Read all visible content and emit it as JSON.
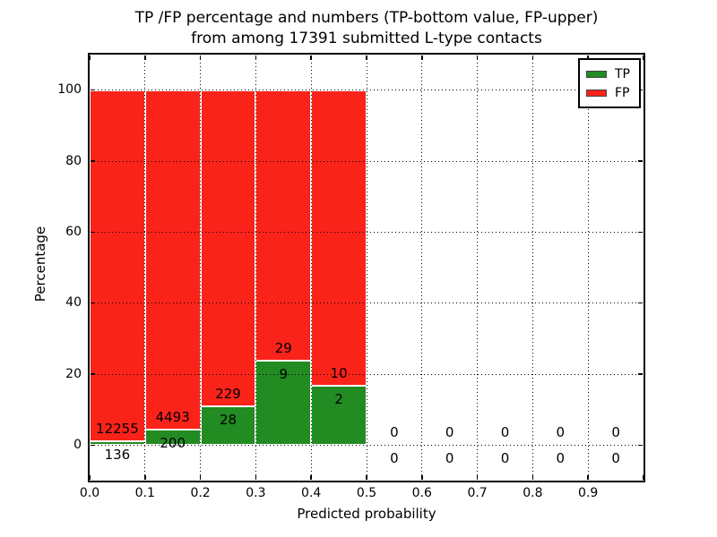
{
  "figure": {
    "title_line1": "TP /FP percentage and numbers (TP-bottom value, FP-upper)",
    "title_line2": "from among 17391 submitted L-type contacts"
  },
  "axes": {
    "xlabel": "Predicted probability",
    "ylabel": "Percentage",
    "x_tick_labels": [
      "0.0",
      "0.1",
      "0.2",
      "0.3",
      "0.4",
      "0.5",
      "0.6",
      "0.7",
      "0.8",
      "0.9"
    ],
    "y_tick_labels": [
      "0",
      "20",
      "40",
      "60",
      "80",
      "100"
    ]
  },
  "legend": {
    "position": "upper right",
    "items": [
      {
        "label": "TP",
        "color": "#228b22"
      },
      {
        "label": "FP",
        "color": "#fa231a"
      }
    ]
  },
  "chart_data": {
    "type": "bar",
    "variant": "stacked-100-percent-histogram",
    "title": "TP /FP percentage and numbers (TP-bottom value, FP-upper) from among 17391 submitted L-type contacts",
    "xlabel": "Predicted probability",
    "ylabel": "Percentage",
    "xlim": [
      0.0,
      1.0
    ],
    "ylim": [
      -10,
      110
    ],
    "xticks": [
      0.0,
      0.1,
      0.2,
      0.3,
      0.4,
      0.5,
      0.6,
      0.7,
      0.8,
      0.9
    ],
    "yticks": [
      0,
      20,
      40,
      60,
      80,
      100
    ],
    "grid": {
      "style": "dotted",
      "color": "#000000",
      "on_top": true
    },
    "bin_width": 0.1,
    "total_submitted_contacts": 17391,
    "series": [
      {
        "name": "TP",
        "color": "#228b22",
        "stack_position": "bottom"
      },
      {
        "name": "FP",
        "color": "#fa231a",
        "stack_position": "top"
      }
    ],
    "bins": [
      {
        "x_start": 0.0,
        "tp_count": 136,
        "fp_count": 12255,
        "tp_percent": 1.1,
        "fp_percent": 98.9
      },
      {
        "x_start": 0.1,
        "tp_count": 200,
        "fp_count": 4493,
        "tp_percent": 4.26,
        "fp_percent": 95.74
      },
      {
        "x_start": 0.2,
        "tp_count": 28,
        "fp_count": 229,
        "tp_percent": 10.89,
        "fp_percent": 89.11
      },
      {
        "x_start": 0.3,
        "tp_count": 9,
        "fp_count": 29,
        "tp_percent": 23.68,
        "fp_percent": 76.32
      },
      {
        "x_start": 0.4,
        "tp_count": 2,
        "fp_count": 10,
        "tp_percent": 16.67,
        "fp_percent": 83.33
      },
      {
        "x_start": 0.5,
        "tp_count": 0,
        "fp_count": 0,
        "tp_percent": 0,
        "fp_percent": 0
      },
      {
        "x_start": 0.6,
        "tp_count": 0,
        "fp_count": 0,
        "tp_percent": 0,
        "fp_percent": 0
      },
      {
        "x_start": 0.7,
        "tp_count": 0,
        "fp_count": 0,
        "tp_percent": 0,
        "fp_percent": 0
      },
      {
        "x_start": 0.8,
        "tp_count": 0,
        "fp_count": 0,
        "tp_percent": 0,
        "fp_percent": 0
      },
      {
        "x_start": 0.9,
        "tp_count": 0,
        "fp_count": 0,
        "tp_percent": 0,
        "fp_percent": 0
      }
    ]
  }
}
